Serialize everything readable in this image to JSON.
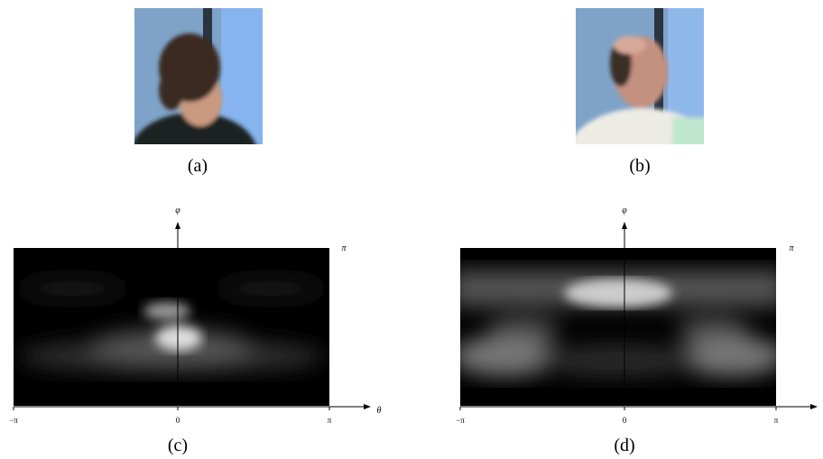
{
  "panels": [
    {
      "caption": "(a)"
    },
    {
      "caption": "(b)"
    },
    {
      "caption": "(c)",
      "y_axis_label": "φ",
      "y_top_label": "π",
      "x_axis_label": "θ",
      "x_tick_labels": [
        "−π",
        "0",
        "π"
      ]
    },
    {
      "caption": "(d)",
      "y_axis_label": "φ",
      "y_top_label": "π",
      "x_tick_labels": [
        "−π",
        "0",
        "π"
      ]
    }
  ]
}
